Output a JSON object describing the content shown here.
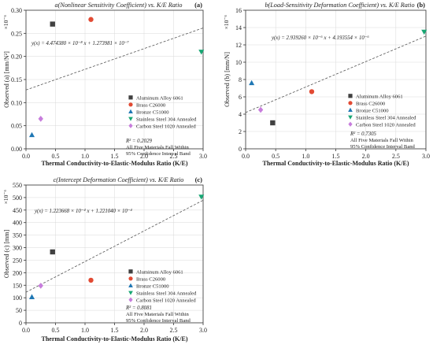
{
  "chart_data": [
    {
      "type": "scatter",
      "panel": "(a)",
      "title": "a(Nonlinear Sensitivity Coefficient) vs. K/E Ratio",
      "xlabel": "Thermal Conductivity-to-Elastic-Modulus Ratio (K/E)",
      "ylabel": "Observed (a) [mm/N²]",
      "multiplier": "×10⁻⁶",
      "xlim": [
        0,
        3.0
      ],
      "ylim": [
        0,
        0.3
      ],
      "xticks": [
        "0.0",
        "0.5",
        "1.0",
        "1.5",
        "2.0",
        "2.5",
        "3.0"
      ],
      "yticks": [
        "0.00",
        "0.05",
        "0.10",
        "0.15",
        "0.20",
        "0.25",
        "0.30"
      ],
      "fit_equation": "y(x) = 4.474380 × 10⁻⁸ x + 1.273981 × 10⁻⁷",
      "fit_line": {
        "slope": 0.04474,
        "intercept": 0.1274
      },
      "r2": "R² = 0.2029",
      "note": [
        "All Five Materials Fall Within",
        "95% Confidence Interval Band"
      ],
      "grid": true,
      "legend_position": "bottom-right",
      "points": [
        {
          "series": "Aluminum Alloy 6061",
          "x": 0.45,
          "y": 0.27
        },
        {
          "series": "Brass C26000",
          "x": 1.1,
          "y": 0.28
        },
        {
          "series": "Bronze C51000",
          "x": 0.1,
          "y": 0.03
        },
        {
          "series": "Stainless Steel 304 Annealed",
          "x": 2.97,
          "y": 0.21
        },
        {
          "series": "Carbon Steel 1020 Annealed",
          "x": 0.25,
          "y": 0.065
        }
      ]
    },
    {
      "type": "scatter",
      "panel": "(b)",
      "title": "b(Load-Sensitivity Deformation Coefficient) vs. K/E Ratio",
      "xlabel": "Thermal Conductivity-to-Elastic-Modulus Ratio (K/E)",
      "ylabel": "Observed (b) [mm/N]",
      "multiplier": "×10⁻⁶",
      "xlim": [
        0,
        3.0
      ],
      "ylim": [
        0,
        16
      ],
      "xticks": [
        "0.0",
        "0.5",
        "1.0",
        "1.5",
        "2.0",
        "2.5",
        "3.0"
      ],
      "yticks": [
        "0",
        "2",
        "4",
        "6",
        "8",
        "10",
        "12",
        "14",
        "16"
      ],
      "fit_equation": "y(x) = 2.939260 × 10⁻⁶ x + 4.193554 × 10⁻⁶",
      "fit_line": {
        "slope": 2.93926,
        "intercept": 4.193554
      },
      "r2": "R² = 0.7305",
      "note": [
        "All Five Materials Fall Within",
        "95% Confidence Interval Band"
      ],
      "grid": true,
      "legend_position": "center-right",
      "points": [
        {
          "series": "Aluminum Alloy 6061",
          "x": 0.45,
          "y": 3.0
        },
        {
          "series": "Brass C26000",
          "x": 1.1,
          "y": 6.6
        },
        {
          "series": "Bronze C51000",
          "x": 0.1,
          "y": 7.6
        },
        {
          "series": "Stainless Steel 304 Annealed",
          "x": 2.97,
          "y": 13.5
        },
        {
          "series": "Carbon Steel 1020 Annealed",
          "x": 0.25,
          "y": 4.5
        }
      ]
    },
    {
      "type": "scatter",
      "panel": "(c)",
      "title": "c(Intercept Deformation Coefficient) vs. K/E Ratio",
      "xlabel": "Thermal Conductivity-to-Elastic-Modulus Ratio (K/E)",
      "ylabel": "Observed (c) [mm]",
      "multiplier": "×10⁻⁶",
      "xlim": [
        0,
        3.0
      ],
      "ylim": [
        0,
        550
      ],
      "xticks": [
        "0.0",
        "0.5",
        "1.0",
        "1.5",
        "2.0",
        "2.5",
        "3.0"
      ],
      "yticks": [
        "0",
        "50",
        "100",
        "150",
        "200",
        "250",
        "300",
        "350",
        "400",
        "450",
        "500",
        "550"
      ],
      "fit_equation": "y(x) = 1.223668 × 10⁻⁴ x + 1.221040 × 10⁻⁴",
      "fit_line": {
        "slope": 122.3668,
        "intercept": 122.104
      },
      "r2": "R² = 0.8081",
      "note": [
        "All Five Materials Fall Within",
        "95% Confidence Interval Band"
      ],
      "grid": true,
      "legend_position": "bottom-right",
      "points": [
        {
          "series": "Aluminum Alloy 6061",
          "x": 0.45,
          "y": 283
        },
        {
          "series": "Brass C26000",
          "x": 1.1,
          "y": 170
        },
        {
          "series": "Bronze C51000",
          "x": 0.1,
          "y": 103
        },
        {
          "series": "Stainless Steel 304 Annealed",
          "x": 2.97,
          "y": 503
        },
        {
          "series": "Carbon Steel 1020 Annealed",
          "x": 0.25,
          "y": 148
        }
      ]
    }
  ],
  "series_styles": [
    {
      "name": "Aluminum Alloy 6061",
      "color": "#404040",
      "marker": "square"
    },
    {
      "name": "Brass C26000",
      "color": "#e24a33",
      "marker": "circle"
    },
    {
      "name": "Bronze C51000",
      "color": "#1f77b4",
      "marker": "triangle-up"
    },
    {
      "name": "Stainless Steel 304 Annealed",
      "color": "#17a673",
      "marker": "triangle-down"
    },
    {
      "name": "Carbon Steel 1020 Annealed",
      "color": "#c77ddc",
      "marker": "diamond"
    }
  ]
}
